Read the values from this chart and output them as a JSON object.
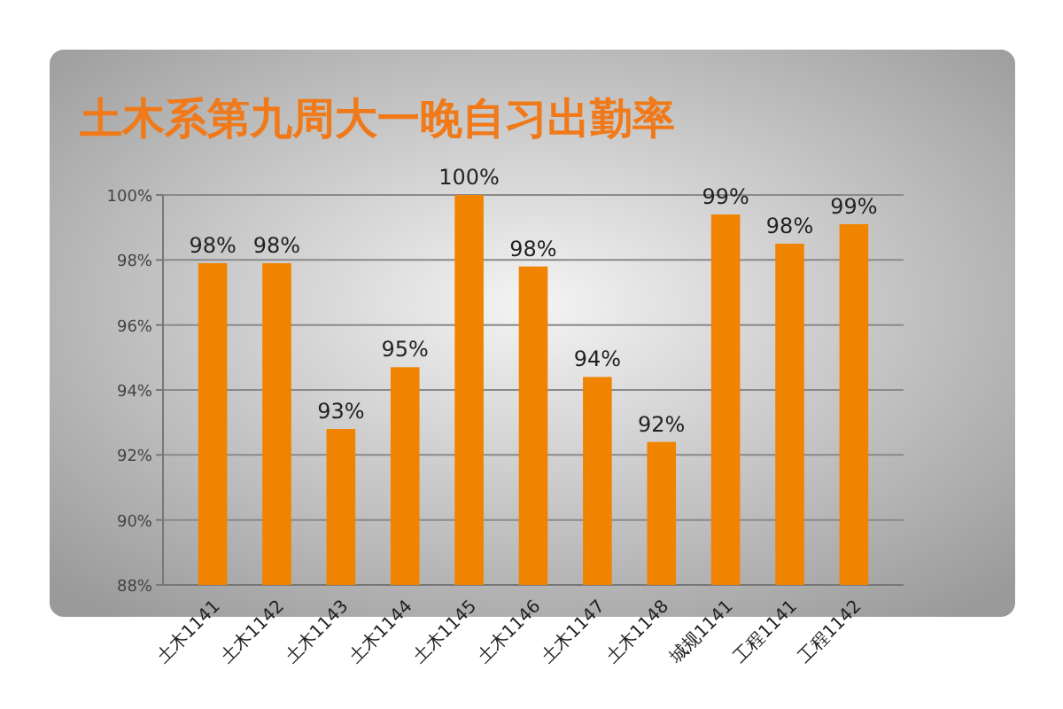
{
  "chart_data": {
    "type": "bar",
    "title": "土木系第九周大一晚自习出勤率",
    "categories": [
      "土木1141",
      "土木1142",
      "土木1143",
      "土木1144",
      "土木1145",
      "土木1146",
      "土木1147",
      "土木1148",
      "城规1141",
      "工程1141",
      "工程1142"
    ],
    "values": [
      97.9,
      97.9,
      92.8,
      94.7,
      100,
      97.8,
      94.4,
      92.4,
      99.4,
      98.5,
      99.1
    ],
    "value_labels": [
      "98%",
      "98%",
      "93%",
      "95%",
      "100%",
      "98%",
      "94%",
      "92%",
      "99%",
      "98%",
      "99%"
    ],
    "color": "#f08300",
    "ylim": [
      88,
      100
    ],
    "yticks": [
      {
        "value": 88,
        "label": "88%"
      },
      {
        "value": 90,
        "label": "90%"
      },
      {
        "value": 92,
        "label": "92%"
      },
      {
        "value": 94,
        "label": "94%"
      },
      {
        "value": 96,
        "label": "96%"
      },
      {
        "value": 98,
        "label": "98%"
      },
      {
        "value": 100,
        "label": "100%"
      }
    ],
    "grid": "y"
  }
}
